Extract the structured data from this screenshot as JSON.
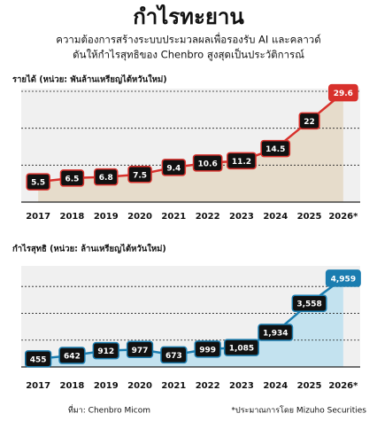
{
  "title": "กำไรทะยาน",
  "subtitle": [
    "ความต้องการสร้างระบบประมวลผลเพื่อรองรับ AI และคลาวด์",
    "ดันให้กำไรสุทธิของ Chenbro สูงสุดเป็นประวัติการณ์"
  ],
  "chart_data": [
    {
      "type": "line",
      "title": "รายได้ (หน่วย: พันล้านเหรียญไต้หวันใหม่)",
      "categories": [
        "2017",
        "2018",
        "2019",
        "2020",
        "2021",
        "2022",
        "2023",
        "2024",
        "2025",
        "2026*"
      ],
      "values": [
        5.5,
        6.5,
        6.8,
        7.5,
        9.4,
        10.6,
        11.2,
        14.5,
        22,
        29.6
      ],
      "color": "#d8312c",
      "area_color": "#e6dccb",
      "label_color": "#111111",
      "last_label_color": "#d8312c",
      "ylim": [
        0,
        30
      ],
      "yticks": [
        0,
        10,
        20,
        30
      ],
      "grid": true
    },
    {
      "type": "line",
      "title": "กำไรสุทธิ (หน่วย: ล้านเหรียญไต้หวันใหม่)",
      "categories": [
        "2017",
        "2018",
        "2019",
        "2020",
        "2021",
        "2022",
        "2023",
        "2024",
        "2025",
        "2026*"
      ],
      "values": [
        455,
        642,
        912,
        977,
        673,
        999,
        1085,
        1934,
        3558,
        4959
      ],
      "value_labels": [
        "455",
        "642",
        "912",
        "977",
        "673",
        "999",
        "1,085",
        "1,934",
        "3,558",
        "4,959"
      ],
      "color": "#1b7db0",
      "area_color": "#c3e2ef",
      "label_color": "#111111",
      "last_label_color": "#1b7db0",
      "ylim": [
        0,
        5500
      ],
      "yticks": [
        0,
        1500,
        3000,
        4500
      ],
      "grid": true
    }
  ],
  "footer": {
    "source": "ที่มา: Chenbro Micom",
    "note": "*ประมาณการโดย Mizuho Securities"
  }
}
